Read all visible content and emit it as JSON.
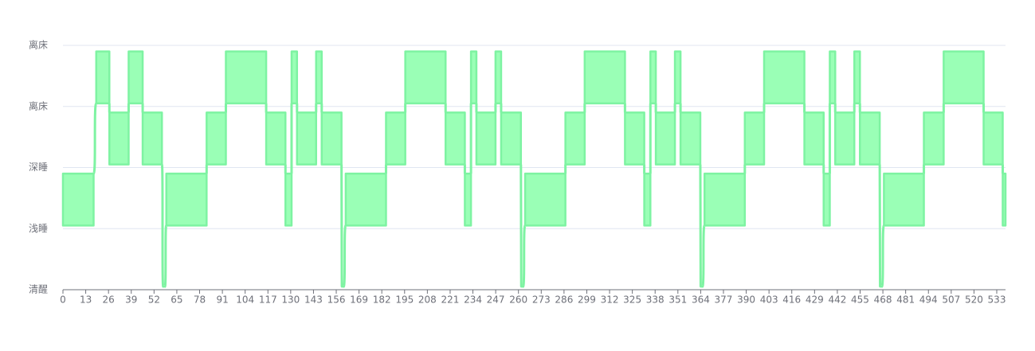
{
  "chart_data": {
    "type": "range-band",
    "color": "#9affb6",
    "line_color": "#7ef3a2",
    "xlim": [
      0,
      538
    ],
    "xticks": [
      0,
      13,
      26,
      39,
      52,
      65,
      78,
      91,
      104,
      117,
      130,
      143,
      156,
      169,
      182,
      195,
      208,
      221,
      234,
      247,
      260,
      273,
      286,
      299,
      312,
      325,
      338,
      351,
      364,
      377,
      390,
      403,
      416,
      429,
      442,
      455,
      468,
      481,
      494,
      507,
      520,
      533
    ],
    "ylim": [
      0,
      4
    ],
    "yticks": [
      {
        "value": 0,
        "label": "清醒"
      },
      {
        "value": 1,
        "label": "浅睡"
      },
      {
        "value": 2,
        "label": "深睡"
      },
      {
        "value": 3,
        "label": "离床"
      },
      {
        "value": 4,
        "label": "离床"
      }
    ],
    "grid": true,
    "x_start": [
      0,
      19,
      26.5,
      37.5,
      45.5,
      57.2,
      59,
      82,
      93,
      116,
      127,
      130.5,
      133.6,
      144.5,
      147.7,
      159.2,
      161.4,
      184.4,
      195.4,
      218.4,
      229.4,
      232.9,
      236,
      246.9,
      250.1,
      261.6,
      263.8,
      286.8,
      297.8,
      320.8,
      331.8,
      335.3,
      338.4,
      349.3,
      352.5,
      364,
      366.2,
      389.2,
      400.2,
      423.2,
      434.2,
      437.7,
      440.8,
      451.7,
      454.9,
      466.4,
      468.6,
      491.4,
      502.7,
      525.5,
      536.4
    ],
    "x_end": [
      17.5,
      26.5,
      37.5,
      45.5,
      56.5,
      58.2,
      82,
      93,
      116,
      127,
      130.5,
      133.6,
      144.5,
      147.7,
      159,
      160.2,
      184.4,
      195.4,
      218.4,
      229.4,
      232.9,
      236,
      246.9,
      250.1,
      261.4,
      262.6,
      286.8,
      297.8,
      320.8,
      331.8,
      335.3,
      338.4,
      349.3,
      352.5,
      363.8,
      365,
      389.2,
      400.2,
      423.2,
      434.2,
      437.7,
      440.8,
      451.7,
      454.9,
      466.2,
      467.4,
      491.4,
      502.7,
      525.5,
      536.4,
      538
    ],
    "low": [
      1.05,
      3.05,
      2.05,
      3.05,
      2.05,
      0.05,
      1.05,
      2.05,
      3.05,
      2.05,
      1.05,
      3.05,
      2.05,
      3.05,
      2.05,
      0.05,
      1.05,
      2.05,
      3.05,
      2.05,
      1.05,
      3.05,
      2.05,
      3.05,
      2.05,
      0.05,
      1.05,
      2.05,
      3.05,
      2.05,
      1.05,
      3.05,
      2.05,
      3.05,
      2.05,
      0.05,
      1.05,
      2.05,
      3.05,
      2.05,
      1.05,
      3.05,
      2.05,
      3.05,
      2.05,
      0.05,
      1.05,
      2.05,
      3.05,
      2.05,
      1.05
    ],
    "high": [
      1.9,
      3.9,
      2.9,
      3.9,
      2.9,
      0.05,
      1.9,
      2.9,
      3.9,
      2.9,
      1.9,
      3.9,
      2.9,
      3.9,
      2.9,
      0.05,
      1.9,
      2.9,
      3.9,
      2.9,
      1.9,
      3.9,
      2.9,
      3.9,
      2.9,
      0.05,
      1.9,
      2.9,
      3.9,
      2.9,
      1.9,
      3.9,
      2.9,
      3.9,
      2.9,
      0.05,
      1.9,
      2.9,
      3.9,
      2.9,
      1.9,
      3.9,
      2.9,
      3.9,
      2.9,
      0.05,
      1.9,
      2.9,
      3.9,
      2.9,
      1.9
    ]
  }
}
